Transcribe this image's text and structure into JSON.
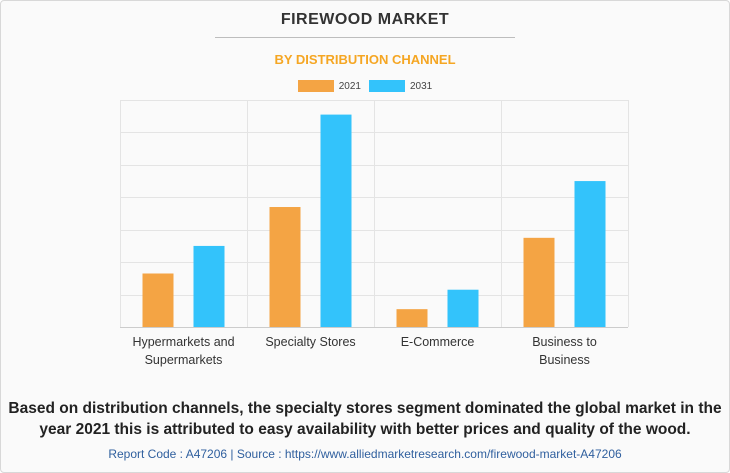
{
  "header": {
    "title": "FIREWOOD MARKET",
    "subtitle": "BY DISTRIBUTION CHANNEL"
  },
  "legend": [
    {
      "label": "2021",
      "color": "#f4a444"
    },
    {
      "label": "2031",
      "color": "#33c3fb"
    }
  ],
  "chart_data": {
    "type": "bar",
    "title": "FIREWOOD MARKET",
    "subtitle": "BY DISTRIBUTION CHANNEL",
    "categories": [
      [
        "Hypermarkets and",
        "Supermarkets"
      ],
      [
        "Specialty Stores"
      ],
      [
        "E-Commerce"
      ],
      [
        "Business to",
        "Business"
      ]
    ],
    "series": [
      {
        "name": "2021",
        "color": "#f4a444",
        "values": [
          1.65,
          3.7,
          0.55,
          2.75
        ]
      },
      {
        "name": "2031",
        "color": "#33c3fb",
        "values": [
          2.5,
          6.55,
          1.15,
          4.5
        ]
      }
    ],
    "ylim": [
      0,
      7
    ],
    "y_axis_labels_shown": false,
    "grid": true,
    "legend_position": "top-center"
  },
  "caption": "Based on distribution channels, the specialty stores segment dominated the global market in the year 2021 this is attributed to easy availability with better prices and quality of the wood.",
  "footer": "Report Code : A47206  |  Source : https://www.alliedmarketresearch.com/firewood-market-A47206"
}
